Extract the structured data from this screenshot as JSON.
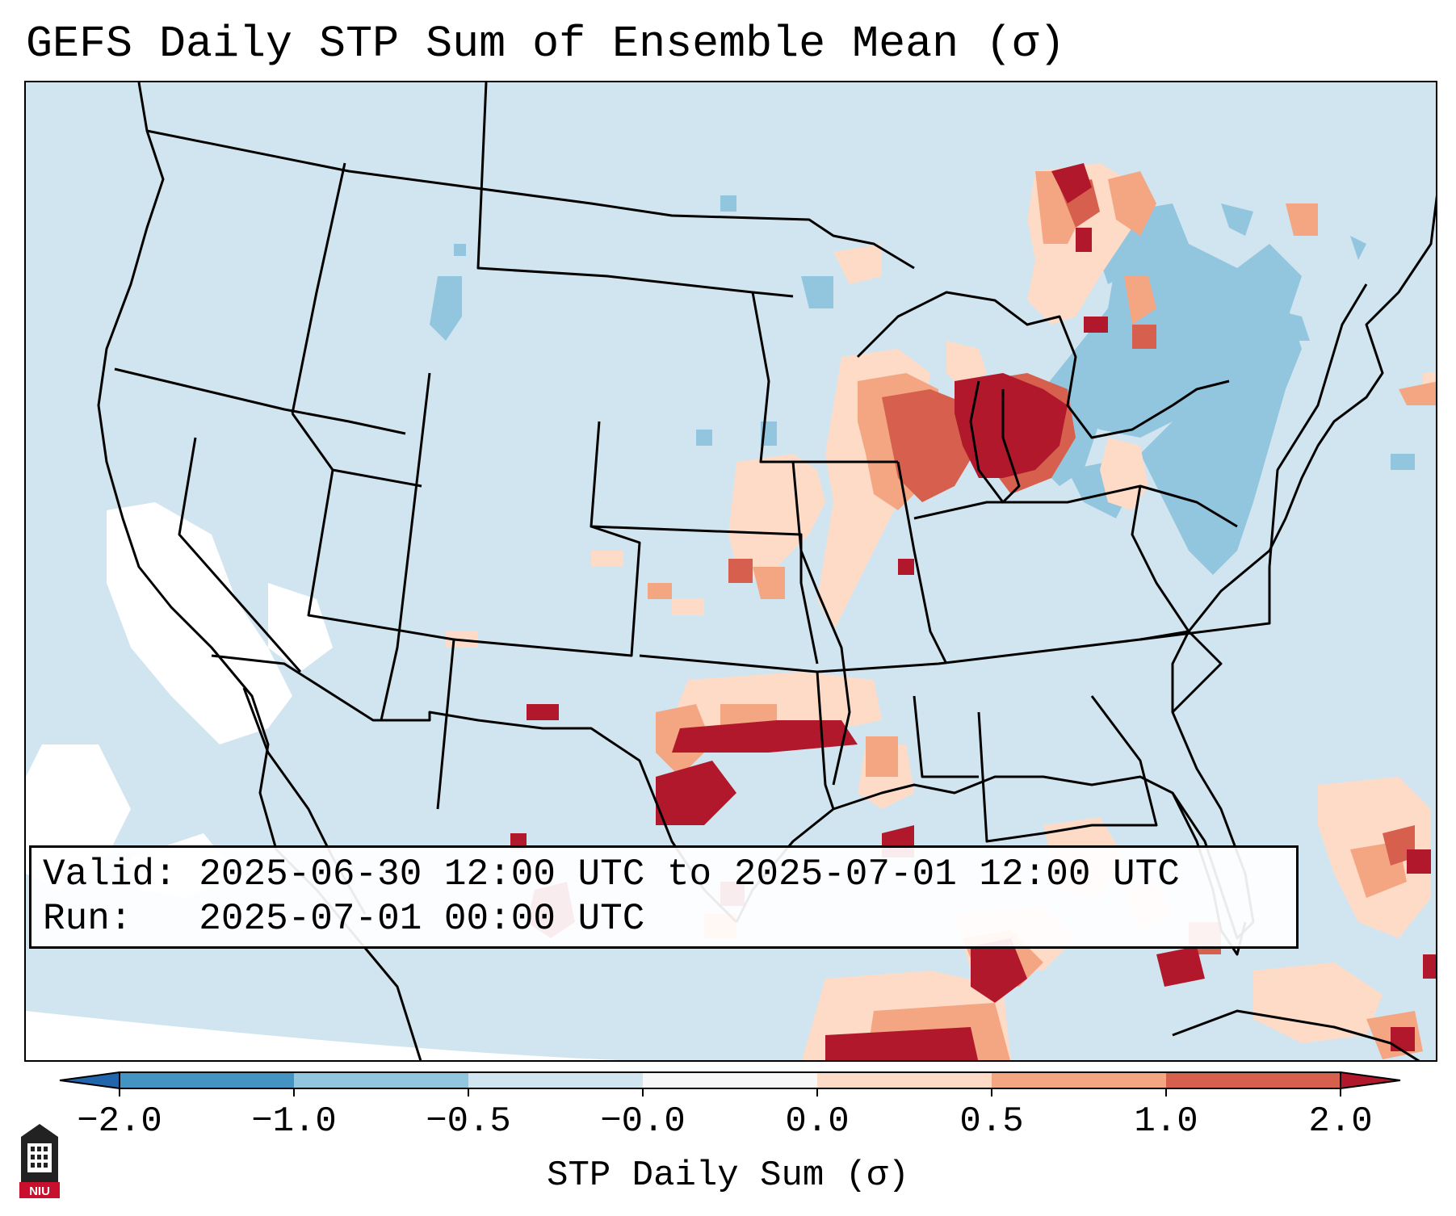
{
  "title": "GEFS Daily STP Sum of Ensemble Mean (σ)",
  "info": {
    "valid_label": "Valid:",
    "valid_value": "2025-06-30 12:00 UTC to 2025-07-01 12:00 UTC",
    "run_label": "Run:",
    "run_value": "2025-07-01 00:00 UTC"
  },
  "colorbar": {
    "label": "STP Daily Sum (σ)",
    "ticks": [
      "−2.0",
      "−1.0",
      "−0.5",
      "−0.0",
      "0.0",
      "0.5",
      "1.0",
      "2.0"
    ],
    "bins": [
      {
        "range": "< -2.0",
        "color": "#2166ac"
      },
      {
        "range": "-2.0 to -1.0",
        "color": "#4393c3"
      },
      {
        "range": "-1.0 to -0.5",
        "color": "#92c5de"
      },
      {
        "range": "-0.5 to -0.0",
        "color": "#d1e5f0"
      },
      {
        "range": "-0.0 to 0.0",
        "color": "#f7f7f7"
      },
      {
        "range": "0.0 to 0.5",
        "color": "#fddbc7"
      },
      {
        "range": "0.5 to 1.0",
        "color": "#f4a582"
      },
      {
        "range": "1.0 to 2.0",
        "color": "#d6604d"
      },
      {
        "range": "> 2.0",
        "color": "#b2182b"
      }
    ]
  },
  "logo": {
    "text": "NIU",
    "icon": "university-tower-icon"
  },
  "colors": {
    "background": "#d1e5f0",
    "neutral": "#f7f7f7",
    "light_neg": "#92c5de",
    "light_pos": "#fddbc7",
    "mid_pos": "#f4a582",
    "high_pos": "#d6604d",
    "max_pos": "#b2182b"
  }
}
